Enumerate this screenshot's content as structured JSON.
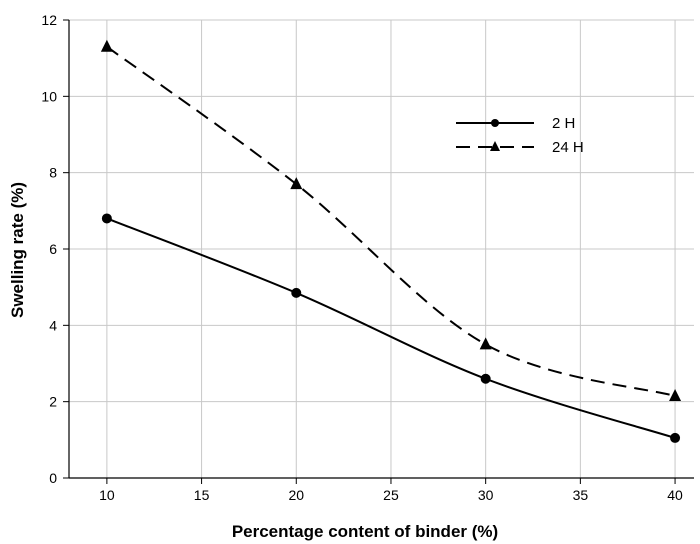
{
  "chart_data": {
    "type": "line",
    "xlabel": "Percentage content of binder (%)",
    "ylabel": "Swelling rate (%)",
    "xlim": [
      8,
      41
    ],
    "ylim": [
      0,
      12
    ],
    "x_ticks": [
      10,
      15,
      20,
      25,
      30,
      35,
      40
    ],
    "y_ticks": [
      0,
      2,
      4,
      6,
      8,
      10,
      12
    ],
    "grid": true,
    "legend_position": "top-right",
    "series": [
      {
        "name": "2 H",
        "marker": "circle",
        "line_style": "solid",
        "color": "#000000",
        "x": [
          10,
          20,
          30,
          40
        ],
        "y": [
          6.8,
          4.85,
          2.6,
          1.05
        ]
      },
      {
        "name": "24 H",
        "marker": "triangle",
        "line_style": "dashed",
        "color": "#000000",
        "x": [
          10,
          20,
          30,
          40
        ],
        "y": [
          11.3,
          7.7,
          3.5,
          2.15
        ]
      }
    ]
  }
}
